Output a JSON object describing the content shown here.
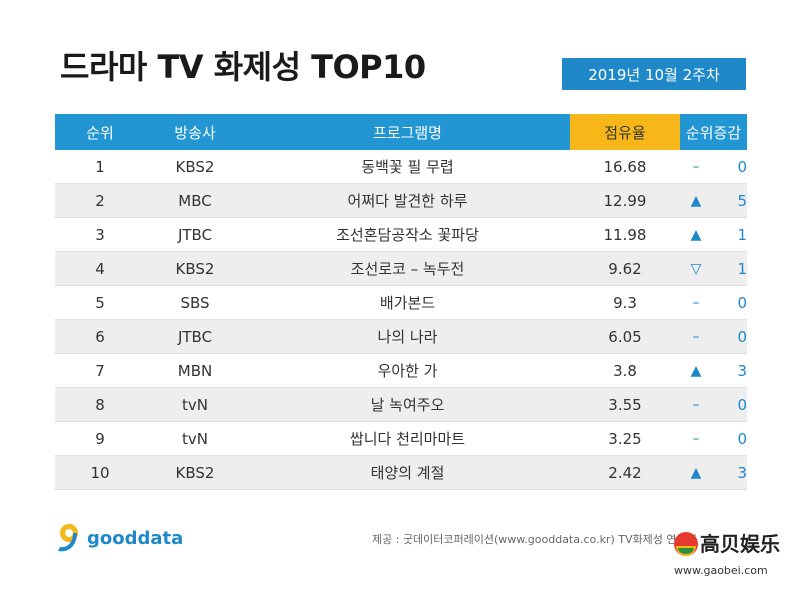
{
  "title": "드라마 TV 화제성 TOP10",
  "date_badge": "2019년 10월 2주차",
  "table": {
    "headers": [
      "순위",
      "방송사",
      "프로그램명",
      "점유율",
      "순위증감"
    ],
    "rows": [
      {
        "rank": "1",
        "broadcaster": "KBS2",
        "program": "동백꽃 필 무렵",
        "share": "16.68",
        "change_icon": "–",
        "change": "0"
      },
      {
        "rank": "2",
        "broadcaster": "MBC",
        "program": "어쩌다 발견한 하루",
        "share": "12.99",
        "change_icon": "▲",
        "change": "5"
      },
      {
        "rank": "3",
        "broadcaster": "JTBC",
        "program": "조선혼담공작소 꽃파당",
        "share": "11.98",
        "change_icon": "▲",
        "change": "1"
      },
      {
        "rank": "4",
        "broadcaster": "KBS2",
        "program": "조선로코 – 녹두전",
        "share": "9.62",
        "change_icon": "▽",
        "change": "1"
      },
      {
        "rank": "5",
        "broadcaster": "SBS",
        "program": "배가본드",
        "share": "9.3",
        "change_icon": "–",
        "change": "0"
      },
      {
        "rank": "6",
        "broadcaster": "JTBC",
        "program": "나의 나라",
        "share": "6.05",
        "change_icon": "–",
        "change": "0"
      },
      {
        "rank": "7",
        "broadcaster": "MBN",
        "program": "우아한 가",
        "share": "3.8",
        "change_icon": "▲",
        "change": "3"
      },
      {
        "rank": "8",
        "broadcaster": "tvN",
        "program": "날 녹여주오",
        "share": "3.55",
        "change_icon": "–",
        "change": "0"
      },
      {
        "rank": "9",
        "broadcaster": "tvN",
        "program": "쌉니다 천리마마트",
        "share": "3.25",
        "change_icon": "–",
        "change": "0"
      },
      {
        "rank": "10",
        "broadcaster": "KBS2",
        "program": "태양의 계절",
        "share": "2.42",
        "change_icon": "▲",
        "change": "3"
      }
    ]
  },
  "logo_text": "gooddata",
  "source": "제공 : 굿데이터코퍼레이션(www.gooddata.co.kr) TV화제성 연구팀",
  "watermark": {
    "name": "高贝娱乐",
    "url": "www.gaobei.com"
  },
  "colors": {
    "header_blue": "#2196d3",
    "header_yellow": "#f7b718",
    "accent_blue": "#1e88c9"
  }
}
